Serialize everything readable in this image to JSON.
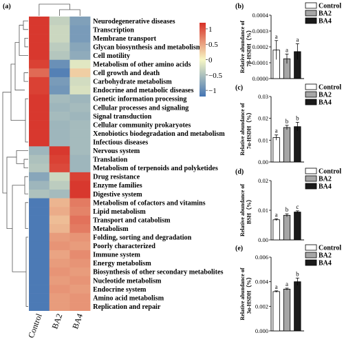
{
  "chart_data": [
    {
      "type": "heatmap",
      "panel_label": "(a)",
      "columns": [
        "Control",
        "BA2",
        "BA4"
      ],
      "rows": [
        "Neurodegenerative diseases",
        "Transcription",
        "Membrane transport",
        "Glycan biosynthesis and metabolism",
        "Cell motility",
        "Metabolism of other amino acids",
        "Cell growth and death",
        "Carbohydrate metabolism",
        "Endocrine and metabolic diseases",
        "Genetic information processing",
        "Cellular processes and signaling",
        "Signal transduction",
        "Cellular community prokaryotes",
        "Xenobiotics biodegradation and metabolism",
        "Infectious diseases",
        "Nervous system",
        "Translation",
        "Metabolism of terpenoids and polyketides",
        "Drug resistance",
        "Enzyme families",
        "Digestive system",
        "Metabolism of cofactors and vitamins",
        "Lipid metabolism",
        "Transport and catabolism",
        "Metabolism",
        "Folding, sorting and degradation",
        "Poorly characterized",
        "Immune system",
        "Energy metabolism",
        "Biosynthesis of other secondary metabolites",
        "Nucleotide metabolism",
        "Endocrine system",
        "Amino acid metabolism",
        "Replication and repair"
      ],
      "values": [
        [
          1.15,
          -0.35,
          -0.8
        ],
        [
          1.15,
          -0.3,
          -0.85
        ],
        [
          1.15,
          -0.3,
          -0.85
        ],
        [
          1.15,
          -0.4,
          -0.75
        ],
        [
          1.15,
          -0.45,
          -0.7
        ],
        [
          1.1,
          -0.95,
          -0.15
        ],
        [
          0.85,
          -1.1,
          0.25
        ],
        [
          1.1,
          -0.85,
          -0.25
        ],
        [
          1.1,
          -0.9,
          -0.2
        ],
        [
          1.15,
          -0.55,
          -0.6
        ],
        [
          1.15,
          -0.6,
          -0.55
        ],
        [
          1.15,
          -0.55,
          -0.6
        ],
        [
          1.15,
          -0.6,
          -0.55
        ],
        [
          1.15,
          -0.6,
          -0.55
        ],
        [
          1.15,
          -0.6,
          -0.55
        ],
        [
          -0.6,
          1.15,
          -0.55
        ],
        [
          -0.5,
          1.1,
          -0.6
        ],
        [
          -0.45,
          1.05,
          -0.6
        ],
        [
          -0.75,
          -0.3,
          1.1
        ],
        [
          -0.6,
          -0.4,
          1.15
        ],
        [
          -0.5,
          -0.55,
          1.15
        ],
        [
          -1.15,
          0.4,
          0.75
        ],
        [
          -1.15,
          0.45,
          0.7
        ],
        [
          -1.15,
          0.35,
          0.8
        ],
        [
          -1.15,
          0.4,
          0.75
        ],
        [
          -1.15,
          0.55,
          0.6
        ],
        [
          -1.15,
          0.6,
          0.55
        ],
        [
          -1.15,
          0.5,
          0.65
        ],
        [
          -1.15,
          0.55,
          0.6
        ],
        [
          -1.15,
          0.6,
          0.55
        ],
        [
          -1.15,
          0.55,
          0.6
        ],
        [
          -1.15,
          0.6,
          0.55
        ],
        [
          -1.15,
          0.55,
          0.6
        ],
        [
          -1.15,
          0.55,
          0.6
        ]
      ],
      "scale_ticks": [
        1,
        0.5,
        0,
        -0.5,
        -1
      ],
      "scale_tick_labels": [
        "1",
        "0.5",
        "0",
        "−0.5",
        "−1"
      ],
      "scale_range": [
        -1.2,
        1.2
      ],
      "colors": {
        "low": "#4575b4",
        "mid": "#f7f7c4",
        "high": "#d73027"
      }
    },
    {
      "type": "bar",
      "panel_label": "(b)",
      "categories": [
        "Control",
        "BA2",
        "BA4"
      ],
      "values": [
        0.00018,
        0.000125,
        0.00017
      ],
      "errors": [
        6e-05,
        3e-05,
        5e-05
      ],
      "letters": [
        "a",
        "a",
        "a"
      ],
      "ylabel": "Relative abundance of\n7β-HSDH（%）",
      "ylim": [
        0,
        0.0004
      ],
      "yticks": [
        "0.0000",
        "0.0001",
        "0.0002",
        "0.0003",
        "0.0004"
      ],
      "legend": [
        "Control",
        "BA2",
        "BA4"
      ],
      "fills": [
        "#ffffff",
        "#a6a6a6",
        "#1a1a1a"
      ]
    },
    {
      "type": "bar",
      "panel_label": "(c)",
      "categories": [
        "Control",
        "BA2",
        "BA4"
      ],
      "values": [
        0.0112,
        0.0158,
        0.0162
      ],
      "errors": [
        0.0012,
        0.001,
        0.002
      ],
      "letters": [
        "a",
        "b",
        "b"
      ],
      "ylabel": "Relative abundance of\n7α-HSDH（%）",
      "ylim": [
        0,
        0.03
      ],
      "yticks": [
        "0.00",
        "0.01",
        "0.02",
        "0.03"
      ],
      "legend": [
        "Control",
        "BA2",
        "BA4"
      ],
      "fills": [
        "#ffffff",
        "#a6a6a6",
        "#1a1a1a"
      ]
    },
    {
      "type": "bar",
      "panel_label": "(d)",
      "categories": [
        "Control",
        "BA2",
        "BA4"
      ],
      "values": [
        0.0068,
        0.0083,
        0.0094
      ],
      "errors": [
        0.0003,
        0.0005,
        0.0004
      ],
      "letters": [
        "a",
        "b",
        "c"
      ],
      "ylabel": "Relative abundance of\nBSH（%）",
      "ylim": [
        0,
        0.02
      ],
      "yticks": [
        "0.00",
        "0.01",
        "0.02"
      ],
      "legend": [
        "Control",
        "BA2",
        "BA4"
      ],
      "fills": [
        "#ffffff",
        "#a6a6a6",
        "#1a1a1a"
      ]
    },
    {
      "type": "bar",
      "panel_label": "(e)",
      "categories": [
        "Control",
        "BA2",
        "BA4"
      ],
      "values": [
        0.0032,
        0.0034,
        0.004
      ],
      "errors": [
        6e-05,
        8e-05,
        0.0003
      ],
      "letters": [
        "a",
        "a",
        "b"
      ],
      "ylabel": "Relative abundance of\n3α-HSDH（%）",
      "ylim": [
        0,
        0.006
      ],
      "yticks": [
        "0.000",
        "0.002",
        "0.004",
        "0.006"
      ],
      "legend": [
        "Control",
        "BA2",
        "BA4"
      ],
      "fills": [
        "#ffffff",
        "#a6a6a6",
        "#1a1a1a"
      ]
    }
  ]
}
